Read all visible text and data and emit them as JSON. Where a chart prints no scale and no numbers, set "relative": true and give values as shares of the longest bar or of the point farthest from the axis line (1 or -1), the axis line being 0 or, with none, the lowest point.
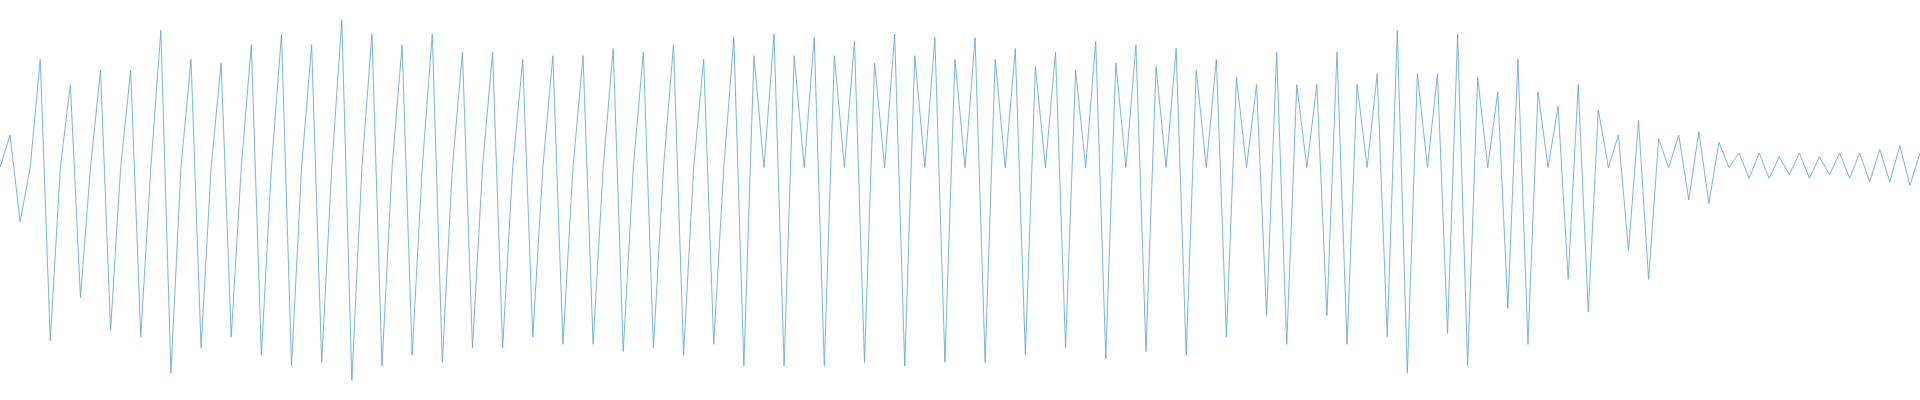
{
  "chart_data": {
    "type": "line",
    "relative": true,
    "color": "#5ba7e0",
    "marker": "none",
    "categories": [
      null,
      null,
      null,
      null,
      null,
      null,
      null,
      null,
      null,
      null,
      null,
      null,
      null,
      null,
      null,
      null,
      null,
      null,
      null,
      null,
      null,
      null,
      null,
      null,
      null,
      null,
      null,
      null,
      null,
      null,
      null,
      null,
      null,
      null,
      null,
      null,
      null,
      null,
      null,
      null,
      null,
      null,
      null,
      null,
      null,
      null,
      null,
      null,
      null,
      null,
      null,
      null,
      null,
      null,
      null,
      null,
      null,
      null,
      null,
      null,
      null,
      null,
      null,
      null,
      null,
      null,
      null,
      null,
      null,
      null,
      null,
      null,
      null,
      null,
      null,
      null,
      null,
      null,
      null,
      null,
      null,
      null,
      null,
      null,
      null,
      null,
      null,
      null,
      null,
      null,
      null,
      null,
      null,
      null,
      null,
      null,
      null,
      null,
      null,
      null,
      null,
      null,
      null,
      null,
      null,
      null,
      null,
      null,
      null,
      null,
      null,
      null,
      null,
      null,
      null,
      null,
      null,
      null,
      null,
      null,
      null,
      null,
      null,
      null,
      null,
      null,
      null,
      null,
      null,
      null,
      null,
      null,
      null,
      null,
      null,
      null,
      null,
      null,
      null,
      null,
      null,
      null,
      null,
      null,
      null,
      null,
      null,
      null,
      null,
      null,
      null,
      null,
      null,
      null,
      null,
      null,
      null,
      null,
      null,
      null,
      null,
      null,
      null,
      null,
      null,
      null,
      null,
      null,
      null,
      null,
      null,
      null,
      null,
      null,
      null,
      null,
      null,
      null,
      null,
      null,
      null,
      null,
      null,
      null,
      null,
      null,
      null,
      null,
      null,
      null,
      null,
      null
    ],
    "values": [
      0.59,
      0.68,
      0.44,
      0.59,
      0.89,
      0.11,
      0.59,
      0.82,
      0.23,
      0.59,
      0.86,
      0.14,
      0.59,
      0.86,
      0.12,
      0.59,
      0.97,
      0.02,
      0.59,
      0.89,
      0.09,
      0.59,
      0.88,
      0.12,
      0.59,
      0.93,
      0.07,
      0.59,
      0.96,
      0.04,
      0.59,
      0.93,
      0.05,
      0.59,
      1.0,
      0.0,
      0.59,
      0.96,
      0.04,
      0.59,
      0.93,
      0.07,
      0.59,
      0.96,
      0.05,
      0.59,
      0.91,
      0.09,
      0.59,
      0.91,
      0.09,
      0.59,
      0.89,
      0.12,
      0.59,
      0.9,
      0.1,
      0.59,
      0.9,
      0.1,
      0.59,
      0.92,
      0.08,
      0.59,
      0.91,
      0.09,
      0.59,
      0.93,
      0.07,
      0.59,
      0.89,
      0.1,
      0.59,
      0.95,
      0.04,
      0.9,
      0.59,
      0.96,
      0.04,
      0.9,
      0.59,
      0.95,
      0.04,
      0.9,
      0.59,
      0.94,
      0.05,
      0.88,
      0.59,
      0.96,
      0.04,
      0.9,
      0.59,
      0.95,
      0.05,
      0.89,
      0.59,
      0.95,
      0.05,
      0.89,
      0.59,
      0.92,
      0.07,
      0.87,
      0.59,
      0.91,
      0.09,
      0.86,
      0.59,
      0.94,
      0.06,
      0.88,
      0.59,
      0.93,
      0.08,
      0.87,
      0.59,
      0.92,
      0.07,
      0.86,
      0.59,
      0.89,
      0.12,
      0.84,
      0.59,
      0.82,
      0.18,
      0.91,
      0.1,
      0.82,
      0.59,
      0.82,
      0.18,
      0.91,
      0.1,
      0.82,
      0.59,
      0.85,
      0.12,
      0.97,
      0.02,
      0.85,
      0.59,
      0.85,
      0.13,
      0.96,
      0.04,
      0.84,
      0.59,
      0.8,
      0.2,
      0.89,
      0.1,
      0.8,
      0.59,
      0.76,
      0.28,
      0.82,
      0.19,
      0.75,
      0.59,
      0.68,
      0.36,
      0.72,
      0.28,
      0.67,
      0.59,
      0.68,
      0.5,
      0.69,
      0.49,
      0.66,
      0.59,
      0.63,
      0.56,
      0.63,
      0.56,
      0.62,
      0.57,
      0.63,
      0.56,
      0.62,
      0.57,
      0.63,
      0.56,
      0.63,
      0.55,
      0.64,
      0.55,
      0.65,
      0.54,
      0.63
    ]
  }
}
